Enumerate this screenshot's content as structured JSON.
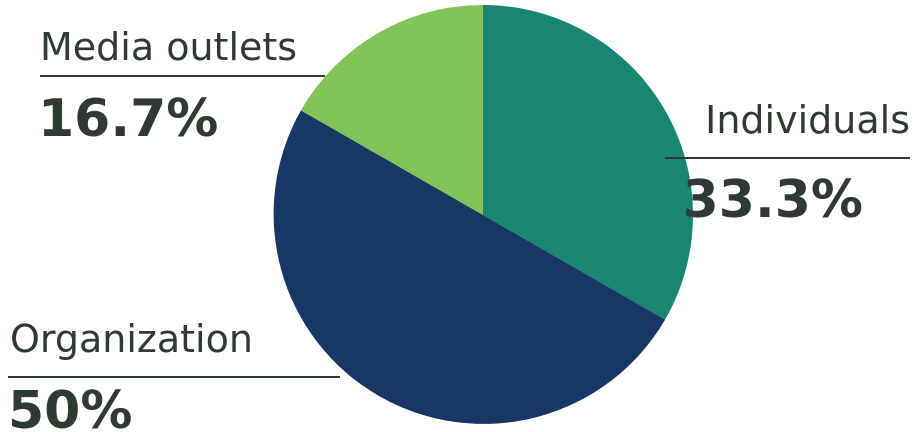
{
  "chart_data": {
    "type": "pie",
    "start_angle_deg": 0,
    "direction": "clockwise",
    "slices": [
      {
        "label": "Individuals",
        "value": 33.3,
        "value_label": "33.3%",
        "color": "#198672"
      },
      {
        "label": "Organization",
        "value": 50,
        "value_label": "50%",
        "color": "#183765"
      },
      {
        "label": "Media outlets",
        "value": 16.7,
        "value_label": "16.7%",
        "color": "#83c458"
      }
    ],
    "legend": "none"
  }
}
